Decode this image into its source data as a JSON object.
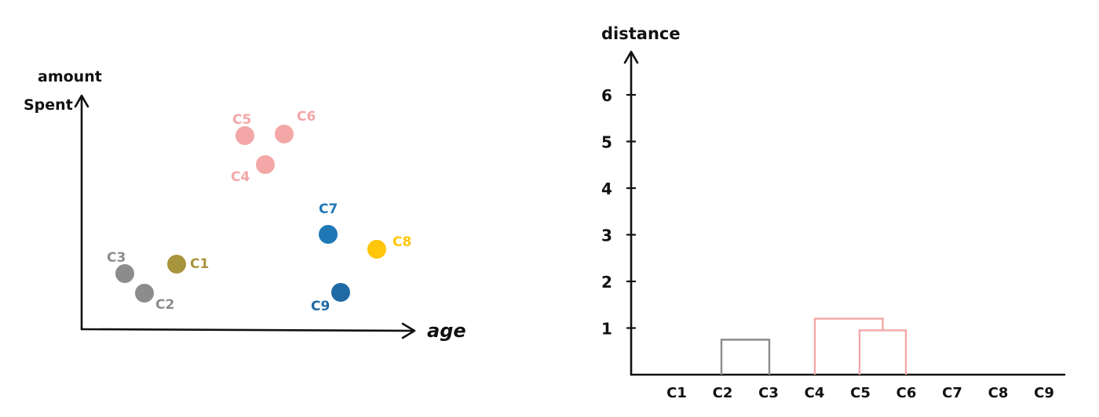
{
  "scatter": {
    "y_label_line1": "amount",
    "y_label_line2": "Spent",
    "x_label": "age",
    "points": [
      {
        "label": "C5",
        "color": "#f4a7a7"
      },
      {
        "label": "C6",
        "color": "#f4a7a7"
      },
      {
        "label": "C4",
        "color": "#f4a7a7"
      },
      {
        "label": "C7",
        "color": "#1f77b4"
      },
      {
        "label": "C8",
        "color": "#ffc60a"
      },
      {
        "label": "C9",
        "color": "#1f6aa5"
      },
      {
        "label": "C3",
        "color": "#8c8c8c"
      },
      {
        "label": "C2",
        "color": "#8c8c8c"
      },
      {
        "label": "C1",
        "color": "#a8943c"
      }
    ]
  },
  "dendrogram": {
    "y_label": "distance",
    "y_ticks": [
      "1",
      "2",
      "3",
      "4",
      "5",
      "6"
    ],
    "x_labels": [
      "C1",
      "C2",
      "C3",
      "C4",
      "C5",
      "C6",
      "C7",
      "C8",
      "C9"
    ],
    "merges": [
      {
        "leaves": [
          "C2",
          "C3"
        ],
        "height": 0.75,
        "color": "#8c8c8c"
      },
      {
        "leaves": [
          "C5",
          "C6"
        ],
        "height": 0.95,
        "color": "#f4a7a7"
      },
      {
        "leaves": [
          "C4",
          "C5-C6"
        ],
        "height": 1.2,
        "color": "#f4a7a7"
      }
    ]
  }
}
